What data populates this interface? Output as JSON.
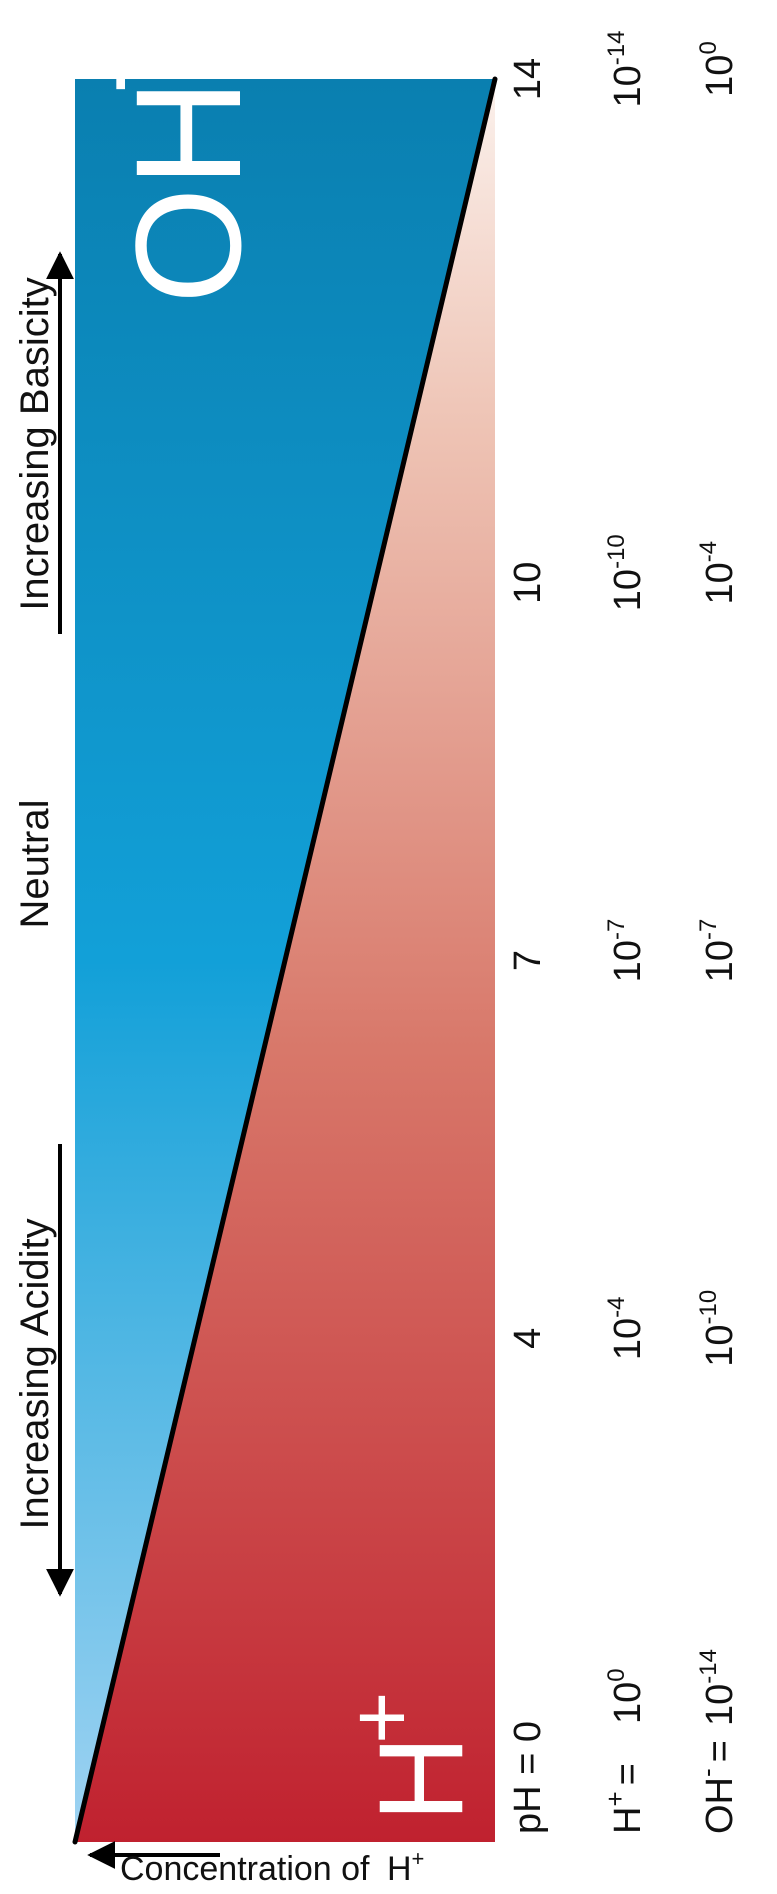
{
  "ions": {
    "h_label": "H",
    "h_charge": "+",
    "oh_label": "OH",
    "oh_charge": "-"
  },
  "annotations": {
    "increasing_acidity": "Increasing Acidity",
    "neutral": "Neutral",
    "increasing_basicity": "Increasing Basicity"
  },
  "axis": {
    "left_arrow_label_main": "Concentration of",
    "left_arrow_label_ion": "H",
    "left_arrow_label_charge": "+"
  },
  "ph_row": {
    "prefix": "pH = 0",
    "ticks": [
      "4",
      "7",
      "10",
      "14"
    ]
  },
  "h_row": {
    "prefix": "H",
    "prefix_charge": "+",
    "prefix_eq": "=",
    "first_exp": "0",
    "values": [
      {
        "base": "10",
        "exp": "-4"
      },
      {
        "base": "10",
        "exp": "-7"
      },
      {
        "base": "10",
        "exp": "-10"
      },
      {
        "base": "10",
        "exp": "-14"
      }
    ]
  },
  "oh_row": {
    "prefix": "OH",
    "prefix_charge": "-",
    "prefix_eq": "=",
    "first_base": "10",
    "first_exp": "-14",
    "values": [
      {
        "base": "10",
        "exp": "-10"
      },
      {
        "base": "10",
        "exp": "-7"
      },
      {
        "base": "10",
        "exp": "-4"
      },
      {
        "base": "10",
        "exp": "0"
      }
    ]
  },
  "colors": {
    "acid_dark": "#c0212f",
    "acid_light": "#fbf1ec",
    "base_dark": "#0a7fb0",
    "base_mid": "#12a0d8",
    "base_light": "#9fd3f2",
    "line": "#000000"
  }
}
